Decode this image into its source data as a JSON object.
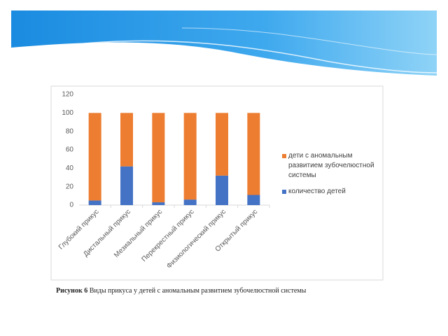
{
  "chart_data": {
    "type": "stacked_bar",
    "categories": [
      "Глубокий прикус",
      "Дистальный прикус",
      "Мезиальный прикус",
      "Перекрестный прикус",
      "Физиологический прикус",
      "Открытый прикус"
    ],
    "series": [
      {
        "name": "количество детей",
        "color": "#4472c4",
        "values": [
          5,
          42,
          3,
          6,
          32,
          11
        ]
      },
      {
        "name": "дети с аномальным развитием зубочелюстной системы",
        "color": "#ed7d31",
        "values": [
          95,
          58,
          97,
          94,
          68,
          89
        ]
      }
    ],
    "ylim": [
      0,
      120
    ],
    "yticks": [
      0,
      20,
      40,
      60,
      80,
      100,
      120
    ],
    "grid": false,
    "legend": "right"
  },
  "caption_label": "Рисунок 6",
  "caption": "Виды прикуса у детей с аномальным развитием зубочелюстной системы"
}
